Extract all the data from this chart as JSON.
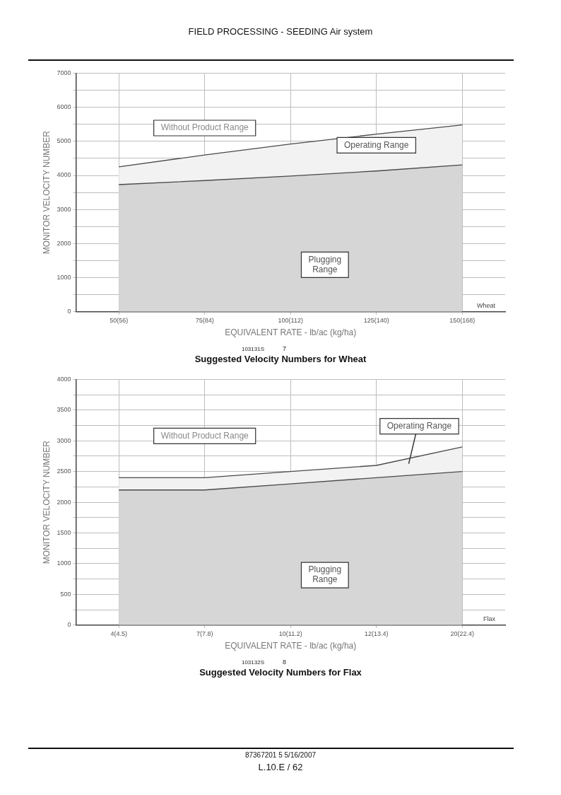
{
  "chart_data": [
    {
      "type": "area",
      "title": "Suggested Velocity Numbers for Wheat",
      "xlabel": "EQUIVALENT RATE - lb/ac (kg/ha)",
      "ylabel": "MONITOR VELOCITY NUMBER",
      "categories": [
        "50(56)",
        "75(84)",
        "100(112)",
        "125(140)",
        "150(168)"
      ],
      "series": [
        {
          "name": "Plugging Range",
          "color": "#d6d6d6",
          "values": [
            3730,
            3850,
            3980,
            4130,
            4310
          ]
        },
        {
          "name": "Operating Range",
          "color": "#f2f2f2",
          "values": [
            4250,
            4600,
            4920,
            5210,
            5480
          ]
        }
      ],
      "ylim": [
        0,
        7000
      ],
      "yticks": [
        0,
        {
          "value": 500,
          "label": null
        },
        1000,
        {
          "value": 1500,
          "label": null
        },
        2000,
        {
          "value": 2500,
          "label": null
        },
        3000,
        {
          "value": 3500,
          "label": null
        },
        4000,
        {
          "value": 4500,
          "label": null
        },
        5000,
        {
          "value": 5500,
          "label": null
        },
        6000,
        {
          "value": 6500,
          "label": null
        },
        7000
      ],
      "grid": true,
      "legend": false,
      "annotations": [
        "Without Product Range",
        "Wheat",
        "103131S",
        "7",
        "FIELD PROCESSING - SEEDING Air system"
      ]
    },
    {
      "type": "area",
      "title": "Suggested Velocity Numbers for Flax",
      "xlabel": "EQUIVALENT RATE - lb/ac (kg/ha)",
      "ylabel": "MONITOR VELOCITY NUMBER",
      "categories": [
        "4(4.5)",
        "7(7.8)",
        "10(11.2)",
        "12(13.4)",
        "20(22.4)"
      ],
      "series": [
        {
          "name": "Plugging Range",
          "color": "#d6d6d6",
          "values": [
            2200,
            2200,
            2300,
            2400,
            2500
          ]
        },
        {
          "name": "Operating Range",
          "color": "#f2f2f2",
          "values": [
            2400,
            2400,
            2500,
            2600,
            2900
          ]
        }
      ],
      "ylim": [
        0,
        4000
      ],
      "yticks": [
        0,
        {
          "value": 250,
          "label": null
        },
        500,
        {
          "value": 750,
          "label": null
        },
        1000,
        {
          "value": 1250,
          "label": null
        },
        1500,
        {
          "value": 1750,
          "label": null
        },
        2000,
        {
          "value": 2250,
          "label": null
        },
        2500,
        {
          "value": 2750,
          "label": null
        },
        3000,
        {
          "value": 3250,
          "label": null
        },
        3500,
        {
          "value": 3750,
          "label": null
        },
        4000
      ],
      "grid": true,
      "legend": false,
      "annotations": [
        "Without Product Range",
        "Flax",
        "103132S",
        "8",
        "87367201 5 5/16/2007",
        "L.10.E / 62"
      ]
    }
  ]
}
